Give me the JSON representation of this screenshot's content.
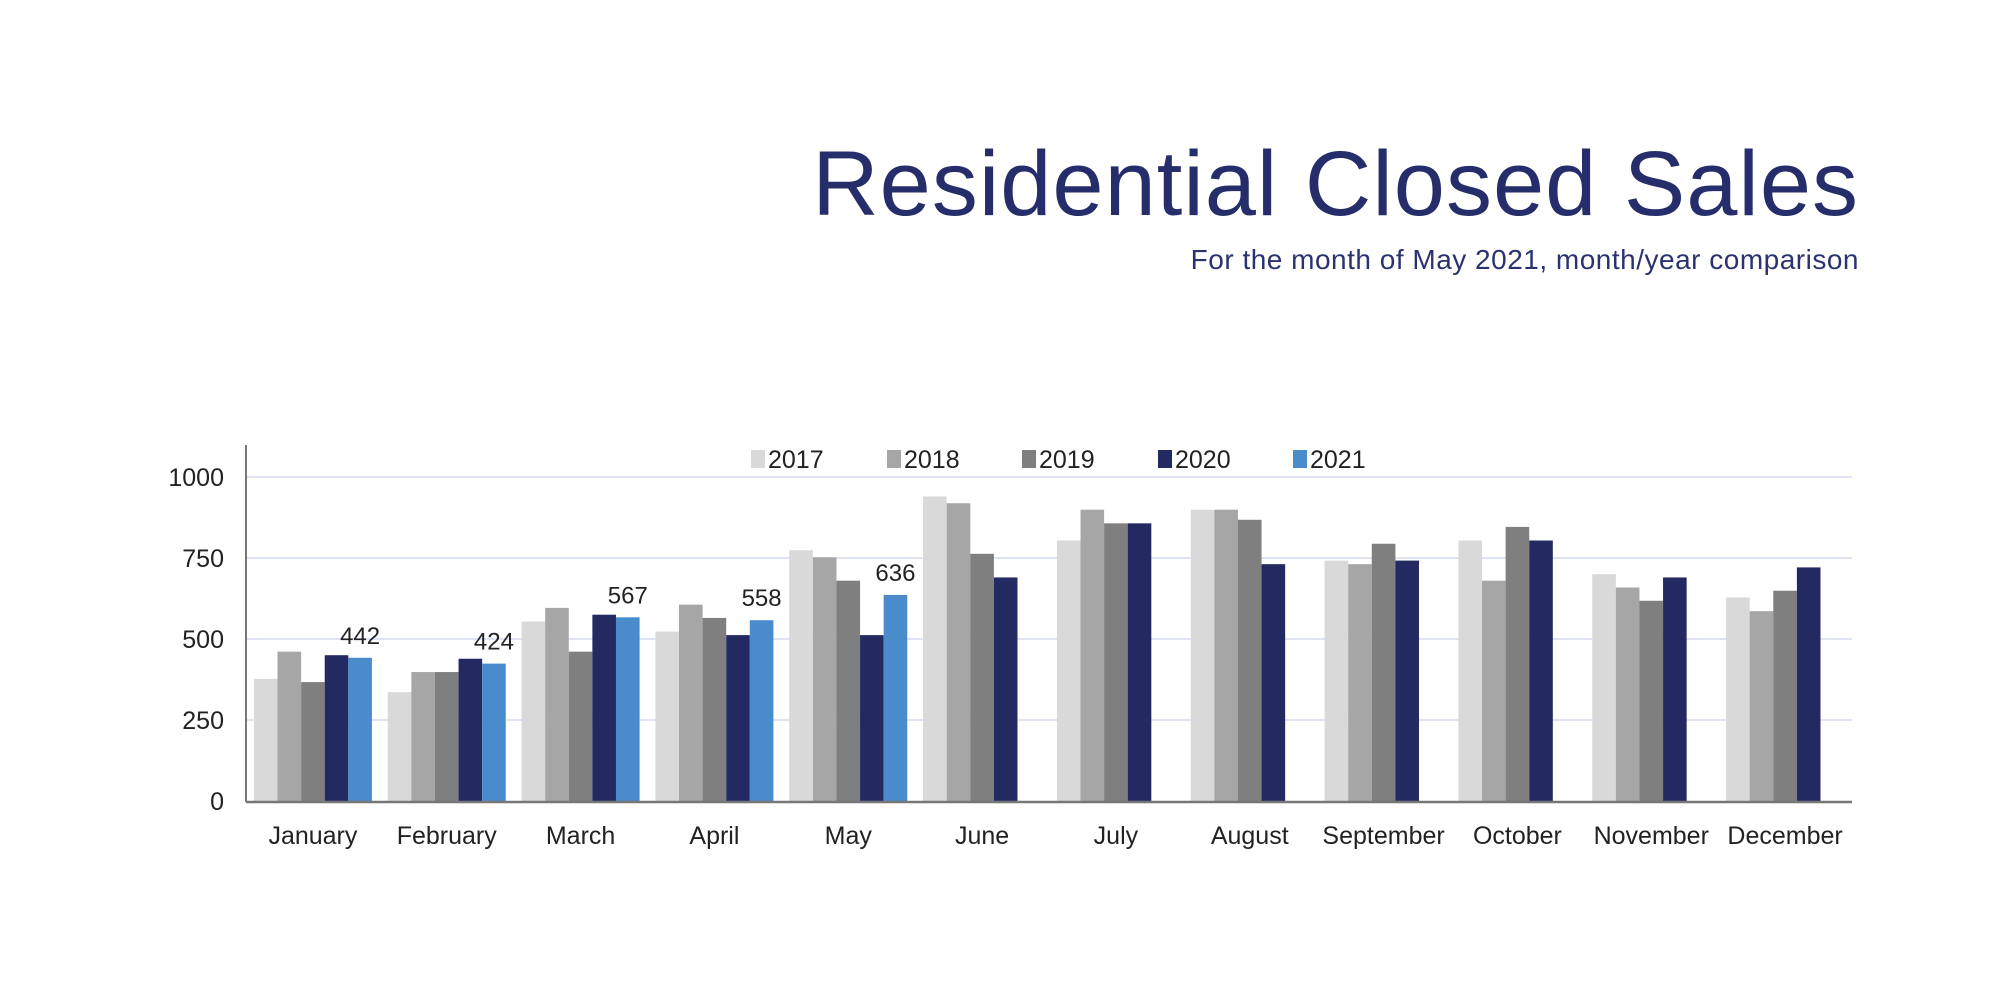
{
  "title": "Residential Closed Sales",
  "subtitle": "For the month of May 2021, month/year comparison",
  "chart_data": {
    "type": "bar",
    "title": "Residential Closed Sales",
    "subtitle": "For the month of May 2021, month/year comparison",
    "xlabel": "",
    "ylabel": "",
    "ylim": [
      0,
      1100
    ],
    "yticks": [
      0,
      250,
      500,
      750,
      1000
    ],
    "grid": true,
    "legend_position": "top-center",
    "categories": [
      "January",
      "February",
      "March",
      "April",
      "May",
      "June",
      "July",
      "August",
      "September",
      "October",
      "November",
      "December"
    ],
    "series": [
      {
        "name": "2017",
        "color": "#d9d9d9",
        "values": [
          377,
          336,
          554,
          523,
          774,
          940,
          804,
          899,
          742,
          804,
          700,
          628
        ]
      },
      {
        "name": "2018",
        "color": "#a6a6a6",
        "values": [
          461,
          398,
          596,
          606,
          752,
          919,
          899,
          899,
          731,
          680,
          659,
          586
        ]
      },
      {
        "name": "2019",
        "color": "#7f7f7f",
        "values": [
          367,
          398,
          461,
          565,
          680,
          763,
          857,
          868,
          794,
          846,
          618,
          649
        ]
      },
      {
        "name": "2020",
        "color": "#232a61",
        "values": [
          450,
          439,
          575,
          512,
          512,
          690,
          857,
          731,
          742,
          804,
          690,
          721
        ]
      },
      {
        "name": "2021",
        "color": "#4a8ccb",
        "values": [
          442,
          424,
          567,
          558,
          636,
          null,
          null,
          null,
          null,
          null,
          null,
          null
        ],
        "data_labels": [
          "442",
          "424",
          "567",
          "558",
          "636"
        ]
      }
    ]
  }
}
